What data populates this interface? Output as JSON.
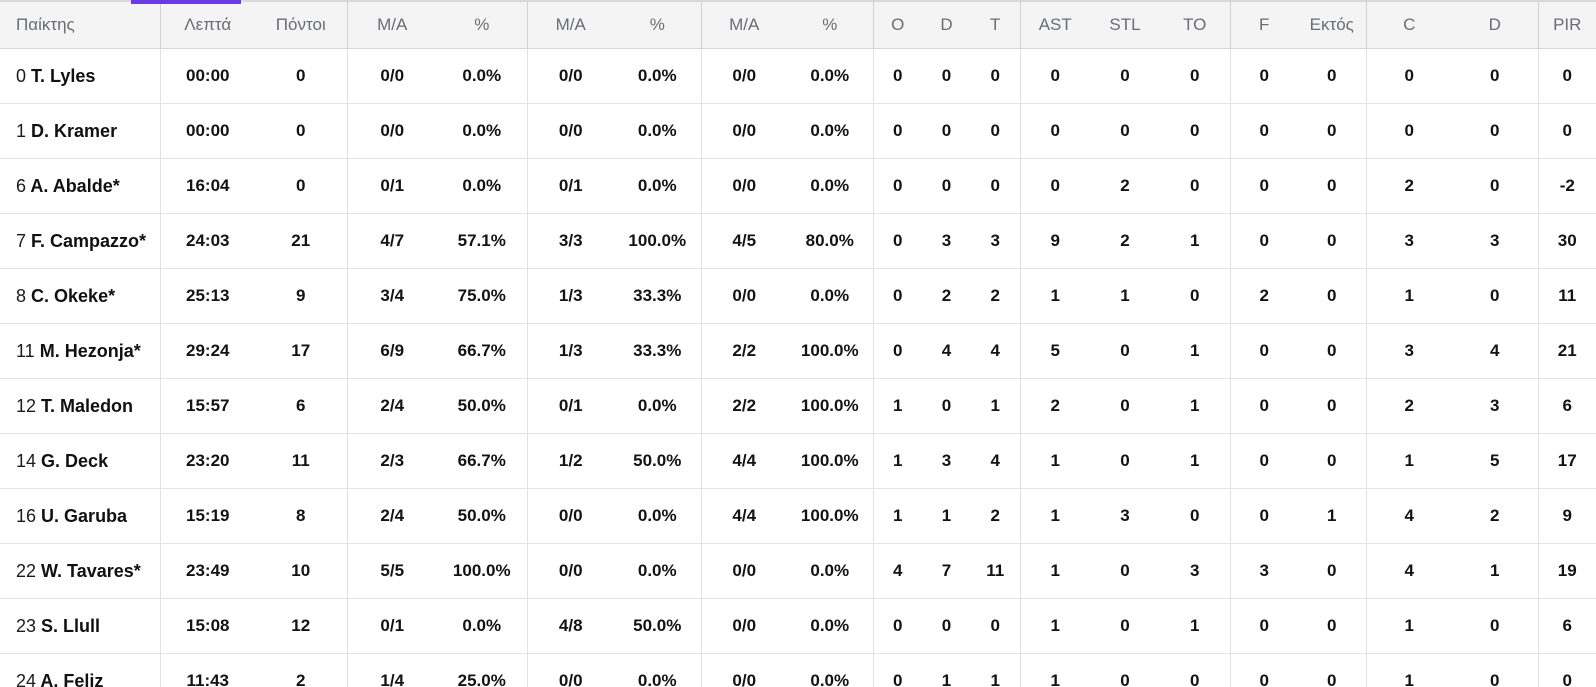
{
  "colors": {
    "accent": "#6c3ae4",
    "header_bg": "#f4f4f4",
    "header_text": "#6a6d72",
    "body_text": "#131313",
    "row_border": "#e3e3e3"
  },
  "table": {
    "headers": [
      "Παίκτης",
      "Λεπτά",
      "Πόντοι",
      "M/A",
      "%",
      "M/A",
      "%",
      "M/A",
      "%",
      "O",
      "D",
      "T",
      "AST",
      "STL",
      "TO",
      "F",
      "Εκτός",
      "C",
      "D",
      "PIR"
    ],
    "players": [
      {
        "num": "0",
        "name": "T. Lyles",
        "min": "00:00",
        "pts": "0",
        "fg2": "0/0",
        "fg2p": "0.0%",
        "fg3": "0/0",
        "fg3p": "0.0%",
        "ft": "0/0",
        "ftp": "0.0%",
        "ro": "0",
        "rd": "0",
        "rt": "0",
        "ast": "0",
        "stl": "0",
        "to": "0",
        "f": "0",
        "out": "0",
        "c": "0",
        "d": "0",
        "pir": "0"
      },
      {
        "num": "1",
        "name": "D. Kramer",
        "min": "00:00",
        "pts": "0",
        "fg2": "0/0",
        "fg2p": "0.0%",
        "fg3": "0/0",
        "fg3p": "0.0%",
        "ft": "0/0",
        "ftp": "0.0%",
        "ro": "0",
        "rd": "0",
        "rt": "0",
        "ast": "0",
        "stl": "0",
        "to": "0",
        "f": "0",
        "out": "0",
        "c": "0",
        "d": "0",
        "pir": "0"
      },
      {
        "num": "6",
        "name": "A. Abalde*",
        "min": "16:04",
        "pts": "0",
        "fg2": "0/1",
        "fg2p": "0.0%",
        "fg3": "0/1",
        "fg3p": "0.0%",
        "ft": "0/0",
        "ftp": "0.0%",
        "ro": "0",
        "rd": "0",
        "rt": "0",
        "ast": "0",
        "stl": "2",
        "to": "0",
        "f": "0",
        "out": "0",
        "c": "2",
        "d": "0",
        "pir": "-2"
      },
      {
        "num": "7",
        "name": "F. Campazzo*",
        "min": "24:03",
        "pts": "21",
        "fg2": "4/7",
        "fg2p": "57.1%",
        "fg3": "3/3",
        "fg3p": "100.0%",
        "ft": "4/5",
        "ftp": "80.0%",
        "ro": "0",
        "rd": "3",
        "rt": "3",
        "ast": "9",
        "stl": "2",
        "to": "1",
        "f": "0",
        "out": "0",
        "c": "3",
        "d": "3",
        "pir": "30"
      },
      {
        "num": "8",
        "name": "C. Okeke*",
        "min": "25:13",
        "pts": "9",
        "fg2": "3/4",
        "fg2p": "75.0%",
        "fg3": "1/3",
        "fg3p": "33.3%",
        "ft": "0/0",
        "ftp": "0.0%",
        "ro": "0",
        "rd": "2",
        "rt": "2",
        "ast": "1",
        "stl": "1",
        "to": "0",
        "f": "2",
        "out": "0",
        "c": "1",
        "d": "0",
        "pir": "11"
      },
      {
        "num": "11",
        "name": "M. Hezonja*",
        "min": "29:24",
        "pts": "17",
        "fg2": "6/9",
        "fg2p": "66.7%",
        "fg3": "1/3",
        "fg3p": "33.3%",
        "ft": "2/2",
        "ftp": "100.0%",
        "ro": "0",
        "rd": "4",
        "rt": "4",
        "ast": "5",
        "stl": "0",
        "to": "1",
        "f": "0",
        "out": "0",
        "c": "3",
        "d": "4",
        "pir": "21"
      },
      {
        "num": "12",
        "name": "T. Maledon",
        "min": "15:57",
        "pts": "6",
        "fg2": "2/4",
        "fg2p": "50.0%",
        "fg3": "0/1",
        "fg3p": "0.0%",
        "ft": "2/2",
        "ftp": "100.0%",
        "ro": "1",
        "rd": "0",
        "rt": "1",
        "ast": "2",
        "stl": "0",
        "to": "1",
        "f": "0",
        "out": "0",
        "c": "2",
        "d": "3",
        "pir": "6"
      },
      {
        "num": "14",
        "name": "G. Deck",
        "min": "23:20",
        "pts": "11",
        "fg2": "2/3",
        "fg2p": "66.7%",
        "fg3": "1/2",
        "fg3p": "50.0%",
        "ft": "4/4",
        "ftp": "100.0%",
        "ro": "1",
        "rd": "3",
        "rt": "4",
        "ast": "1",
        "stl": "0",
        "to": "1",
        "f": "0",
        "out": "0",
        "c": "1",
        "d": "5",
        "pir": "17"
      },
      {
        "num": "16",
        "name": "U. Garuba",
        "min": "15:19",
        "pts": "8",
        "fg2": "2/4",
        "fg2p": "50.0%",
        "fg3": "0/0",
        "fg3p": "0.0%",
        "ft": "4/4",
        "ftp": "100.0%",
        "ro": "1",
        "rd": "1",
        "rt": "2",
        "ast": "1",
        "stl": "3",
        "to": "0",
        "f": "0",
        "out": "1",
        "c": "4",
        "d": "2",
        "pir": "9"
      },
      {
        "num": "22",
        "name": "W. Tavares*",
        "min": "23:49",
        "pts": "10",
        "fg2": "5/5",
        "fg2p": "100.0%",
        "fg3": "0/0",
        "fg3p": "0.0%",
        "ft": "0/0",
        "ftp": "0.0%",
        "ro": "4",
        "rd": "7",
        "rt": "11",
        "ast": "1",
        "stl": "0",
        "to": "3",
        "f": "3",
        "out": "0",
        "c": "4",
        "d": "1",
        "pir": "19"
      },
      {
        "num": "23",
        "name": "S. Llull",
        "min": "15:08",
        "pts": "12",
        "fg2": "0/1",
        "fg2p": "0.0%",
        "fg3": "4/8",
        "fg3p": "50.0%",
        "ft": "0/0",
        "ftp": "0.0%",
        "ro": "0",
        "rd": "0",
        "rt": "0",
        "ast": "1",
        "stl": "0",
        "to": "1",
        "f": "0",
        "out": "0",
        "c": "1",
        "d": "0",
        "pir": "6"
      },
      {
        "num": "24",
        "name": "A. Feliz",
        "min": "11:43",
        "pts": "2",
        "fg2": "1/4",
        "fg2p": "25.0%",
        "fg3": "0/0",
        "fg3p": "0.0%",
        "ft": "0/0",
        "ftp": "0.0%",
        "ro": "0",
        "rd": "1",
        "rt": "1",
        "ast": "1",
        "stl": "0",
        "to": "0",
        "f": "0",
        "out": "0",
        "c": "1",
        "d": "0",
        "pir": "0"
      }
    ]
  }
}
